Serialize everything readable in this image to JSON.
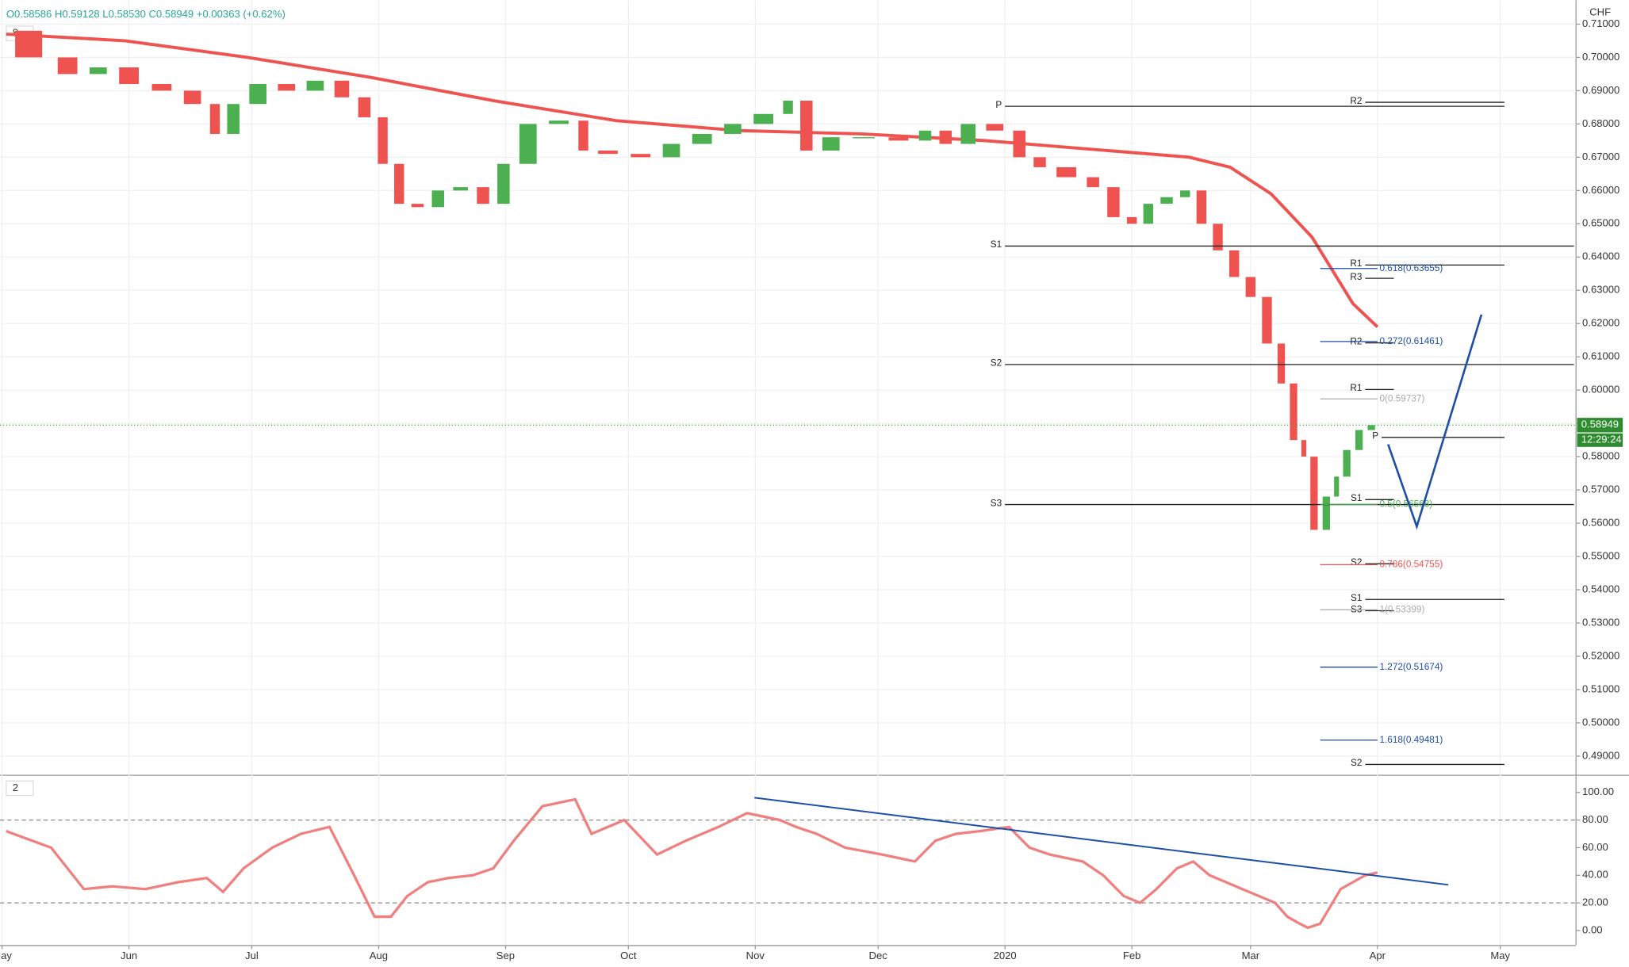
{
  "header": {
    "ohlc": "O0.58586 H0.59128 L0.58530 C0.58949 +0.00363 (+0.62%)",
    "pane1": "8",
    "pane2": "2",
    "currency": "CHF",
    "last_price": "0.58949",
    "countdown": "12:29:24"
  },
  "chart_data": [
    {
      "type": "candlestick",
      "up_color": "#4caf50",
      "down_color": "#ef5350",
      "xlim": [
        -0.5,
        384.5
      ],
      "xticks": [
        {
          "value": 0,
          "label": "May"
        },
        {
          "value": 31,
          "label": "Jun"
        },
        {
          "value": 61,
          "label": "Jul"
        },
        {
          "value": 92,
          "label": "Aug"
        },
        {
          "value": 123,
          "label": "Sep"
        },
        {
          "value": 153,
          "label": "Oct"
        },
        {
          "value": 184,
          "label": "Nov"
        },
        {
          "value": 214,
          "label": "Dec"
        },
        {
          "value": 245,
          "label": "2020"
        },
        {
          "value": 276,
          "label": "Feb"
        },
        {
          "value": 305,
          "label": "Mar"
        },
        {
          "value": 336,
          "label": "Apr"
        },
        {
          "value": 366,
          "label": "May"
        }
      ],
      "ylim": [
        0.4844,
        0.7172
      ],
      "yticks": [
        {
          "value": 0.71,
          "label": "0.71000"
        },
        {
          "value": 0.7,
          "label": "0.70000"
        },
        {
          "value": 0.69,
          "label": "0.69000"
        },
        {
          "value": 0.68,
          "label": "0.68000"
        },
        {
          "value": 0.67,
          "label": "0.67000"
        },
        {
          "value": 0.66,
          "label": "0.66000"
        },
        {
          "value": 0.65,
          "label": "0.65000"
        },
        {
          "value": 0.64,
          "label": "0.64000"
        },
        {
          "value": 0.63,
          "label": "0.63000"
        },
        {
          "value": 0.62,
          "label": "0.62000"
        },
        {
          "value": 0.61,
          "label": "0.61000"
        },
        {
          "value": 0.6,
          "label": "0.60000"
        },
        {
          "value": 0.59,
          "label": "0.59000"
        },
        {
          "value": 0.58,
          "label": "0.58000"
        },
        {
          "value": 0.57,
          "label": "0.57000"
        },
        {
          "value": 0.56,
          "label": "0.56000"
        },
        {
          "value": 0.55,
          "label": "0.55000"
        },
        {
          "value": 0.54,
          "label": "0.54000"
        },
        {
          "value": 0.53,
          "label": "0.53000"
        },
        {
          "value": 0.52,
          "label": "0.52000"
        },
        {
          "value": 0.51,
          "label": "0.51000"
        },
        {
          "value": 0.5,
          "label": "0.50000"
        },
        {
          "value": 0.49,
          "label": "0.49000"
        }
      ],
      "x": [
        1,
        12,
        20,
        27,
        35,
        43,
        50,
        54,
        59,
        66,
        73,
        80,
        86,
        91,
        95,
        99,
        104,
        109,
        115,
        120,
        125,
        132,
        140,
        144,
        152,
        160,
        167,
        175,
        182,
        190,
        194,
        199,
        206,
        215,
        223,
        228,
        233,
        239,
        246,
        251,
        256,
        264,
        269,
        274,
        278,
        282,
        287,
        291,
        295,
        299,
        303,
        307,
        311,
        314,
        317,
        319,
        322,
        325,
        327,
        330,
        333,
        336
      ],
      "close": [
        0.708,
        0.7,
        0.695,
        0.697,
        0.692,
        0.69,
        0.686,
        0.677,
        0.686,
        0.692,
        0.69,
        0.693,
        0.688,
        0.682,
        0.668,
        0.656,
        0.655,
        0.66,
        0.661,
        0.656,
        0.668,
        0.68,
        0.681,
        0.672,
        0.671,
        0.67,
        0.674,
        0.677,
        0.68,
        0.683,
        0.687,
        0.672,
        0.676,
        0.676,
        0.675,
        0.678,
        0.674,
        0.68,
        0.678,
        0.67,
        0.667,
        0.664,
        0.661,
        0.652,
        0.65,
        0.656,
        0.658,
        0.66,
        0.65,
        0.642,
        0.634,
        0.628,
        0.614,
        0.602,
        0.585,
        0.58,
        0.558,
        0.568,
        0.574,
        0.582,
        0.588,
        0.58949
      ],
      "ma": {
        "color": "#ef5350",
        "x": [
          1,
          30,
          60,
          90,
          120,
          150,
          180,
          210,
          240,
          270,
          290,
          300,
          310,
          320,
          330,
          336
        ],
        "values": [
          0.707,
          0.705,
          0.7,
          0.694,
          0.687,
          0.681,
          0.678,
          0.677,
          0.675,
          0.672,
          0.67,
          0.667,
          0.659,
          0.646,
          0.626,
          0.619
        ]
      },
      "projection": {
        "color": "#1e4fa8",
        "x": [
          338.6,
          345.6,
          361.4
        ],
        "values": [
          0.5837,
          0.559,
          0.6227
        ]
      },
      "last": 0.58949,
      "levels": [
        {
          "text": "P",
          "price": 0.6853,
          "from": 245,
          "to": 367
        },
        {
          "text": "S1",
          "price": 0.6433,
          "from": 245,
          "to": 384
        },
        {
          "text": "S2",
          "price": 0.6077,
          "from": 245,
          "to": 384
        },
        {
          "text": "S3",
          "price": 0.5656,
          "from": 245,
          "to": 384
        },
        {
          "text": "R2",
          "price": 0.6865,
          "from": 333,
          "to": 367
        },
        {
          "text": "R1",
          "price": 0.6376,
          "from": 333,
          "to": 367
        },
        {
          "text": "R3",
          "price": 0.6336,
          "from": 333,
          "to": 340
        },
        {
          "text": "R2",
          "price": 0.6142,
          "from": 333,
          "to": 340
        },
        {
          "text": "R1",
          "price": 0.6002,
          "from": 333,
          "to": 340
        },
        {
          "text": "P",
          "price": 0.5858,
          "from": 337,
          "to": 367
        },
        {
          "text": "S1",
          "price": 0.5671,
          "from": 333,
          "to": 340
        },
        {
          "text": "S2",
          "price": 0.5478,
          "from": 333,
          "to": 340
        },
        {
          "text": "S1",
          "price": 0.5371,
          "from": 333,
          "to": 367
        },
        {
          "text": "S3",
          "price": 0.5337,
          "from": 333,
          "to": 340
        },
        {
          "text": "S2",
          "price": 0.4875,
          "from": 333,
          "to": 367
        }
      ],
      "fibs": [
        {
          "text": "0(0.59737)",
          "price": 0.59737,
          "color": "#aaaaaa",
          "from": 322,
          "to": 336
        },
        {
          "text": "0.272(0.61461)",
          "price": 0.61461,
          "color": "#1e4fa8",
          "from": 322,
          "to": 336
        },
        {
          "text": "0.618(0.63655)",
          "price": 0.63655,
          "color": "#1e4fa8",
          "from": 322,
          "to": 336
        },
        {
          "text": "0.5(0.56568)",
          "price": 0.56568,
          "color": "#4caf50",
          "from": 322,
          "to": 336
        },
        {
          "text": "0.786(0.54755)",
          "price": 0.54755,
          "color": "#ef5350",
          "from": 322,
          "to": 336
        },
        {
          "text": "1(0.53399)",
          "price": 0.53399,
          "color": "#aaaaaa",
          "from": 322,
          "to": 336
        },
        {
          "text": "1.272(0.51674)",
          "price": 0.51674,
          "color": "#1e4fa8",
          "from": 322,
          "to": 336
        },
        {
          "text": "1.618(0.49481)",
          "price": 0.49481,
          "color": "#1e4fa8",
          "from": 322,
          "to": 336
        }
      ]
    },
    {
      "type": "line",
      "color": "#f08080",
      "xlim": [
        -0.5,
        384.5
      ],
      "ylim": [
        -10.5,
        111.3
      ],
      "yticks": [
        {
          "value": 100,
          "label": "100.00"
        },
        {
          "value": 80,
          "label": "80.00"
        },
        {
          "value": 60,
          "label": "60.00"
        },
        {
          "value": 40,
          "label": "40.00"
        },
        {
          "value": 20,
          "label": "20.00"
        },
        {
          "value": 0,
          "label": "0.00"
        }
      ],
      "bands": [
        80,
        20
      ],
      "x": [
        1,
        12,
        20,
        27,
        35,
        43,
        50,
        54,
        59,
        66,
        73,
        80,
        86,
        91,
        95,
        99,
        104,
        109,
        115,
        120,
        125,
        132,
        140,
        144,
        152,
        160,
        167,
        175,
        182,
        190,
        194,
        199,
        206,
        215,
        223,
        228,
        233,
        239,
        246,
        251,
        256,
        264,
        269,
        274,
        278,
        282,
        287,
        291,
        295,
        299,
        303,
        307,
        311,
        314,
        317,
        319,
        322,
        325,
        327,
        330,
        333,
        336
      ],
      "values": [
        72,
        60,
        30,
        32,
        30,
        35,
        38,
        28,
        45,
        60,
        70,
        75,
        40,
        10,
        10,
        25,
        35,
        38,
        40,
        45,
        65,
        90,
        95,
        70,
        80,
        55,
        65,
        75,
        85,
        80,
        75,
        70,
        60,
        55,
        50,
        65,
        70,
        72,
        75,
        60,
        55,
        50,
        40,
        25,
        20,
        30,
        45,
        50,
        40,
        35,
        30,
        25,
        20,
        10,
        5,
        2,
        5,
        20,
        30,
        35,
        40,
        42
      ],
      "trend": {
        "color": "#1e4fa8",
        "x": [
          183.8,
          353.3
        ],
        "values": [
          96.2,
          33.1
        ]
      }
    }
  ]
}
